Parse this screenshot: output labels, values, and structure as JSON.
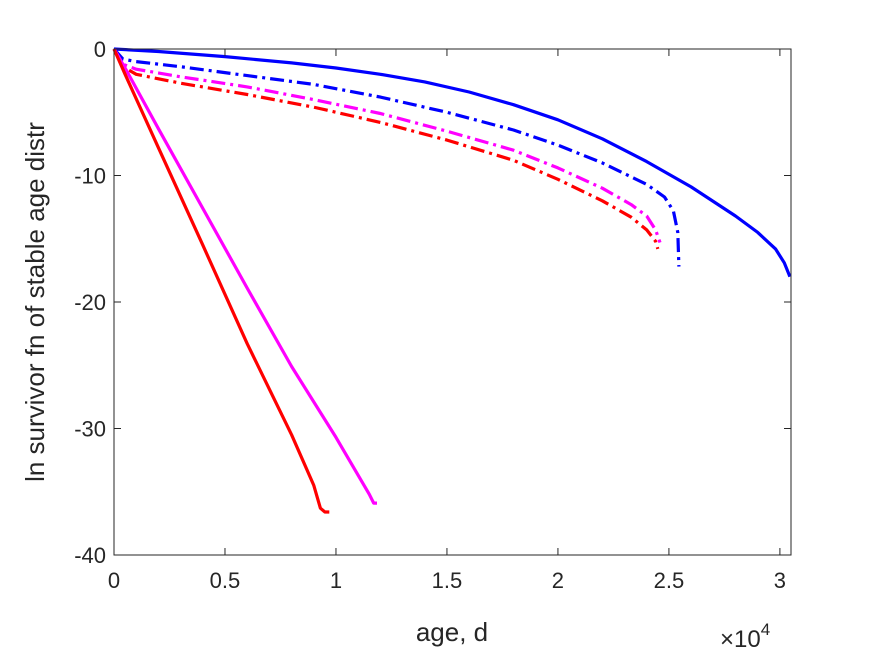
{
  "chart_data": {
    "type": "line",
    "xlabel": "age, d",
    "ylabel": "ln survivor fn of stable age distr",
    "x_multiplier": {
      "base": "×10",
      "exponent": "4"
    },
    "xlim": [
      0,
      30500
    ],
    "ylim": [
      -40,
      0
    ],
    "x_ticks": [
      0,
      5000,
      10000,
      15000,
      20000,
      25000,
      30000
    ],
    "x_tick_labels": [
      "0",
      "0.5",
      "1",
      "1.5",
      "2",
      "2.5",
      "3"
    ],
    "y_ticks": [
      0,
      -10,
      -20,
      -30,
      -40
    ],
    "y_tick_labels": [
      "0",
      "-10",
      "-20",
      "-30",
      "-40"
    ],
    "grid": false,
    "series": [
      {
        "color": "#0000ff",
        "style": "solid",
        "points": [
          [
            0,
            0
          ],
          [
            2000,
            -0.2
          ],
          [
            5000,
            -0.6
          ],
          [
            8000,
            -1.1
          ],
          [
            10000,
            -1.5
          ],
          [
            12000,
            -2.0
          ],
          [
            14000,
            -2.6
          ],
          [
            16000,
            -3.4
          ],
          [
            18000,
            -4.4
          ],
          [
            20000,
            -5.6
          ],
          [
            22000,
            -7.1
          ],
          [
            24000,
            -8.9
          ],
          [
            26000,
            -10.9
          ],
          [
            28000,
            -13.2
          ],
          [
            29000,
            -14.5
          ],
          [
            29800,
            -15.8
          ],
          [
            30200,
            -16.9
          ],
          [
            30450,
            -18.0
          ]
        ]
      },
      {
        "color": "#0000ff",
        "style": "dashdot",
        "points": [
          [
            0,
            0
          ],
          [
            400,
            -0.8
          ],
          [
            1000,
            -1.0
          ],
          [
            3000,
            -1.4
          ],
          [
            6000,
            -2.1
          ],
          [
            9000,
            -2.8
          ],
          [
            12000,
            -3.8
          ],
          [
            15000,
            -5.0
          ],
          [
            18000,
            -6.4
          ],
          [
            20000,
            -7.6
          ],
          [
            22000,
            -9.0
          ],
          [
            24000,
            -10.7
          ],
          [
            24800,
            -11.7
          ],
          [
            25200,
            -12.8
          ],
          [
            25400,
            -14.5
          ],
          [
            25450,
            -17.2
          ]
        ]
      },
      {
        "color": "#ff00ff",
        "style": "dashdot",
        "points": [
          [
            0,
            0
          ],
          [
            400,
            -1.2
          ],
          [
            1000,
            -1.6
          ],
          [
            3000,
            -2.2
          ],
          [
            6000,
            -3.0
          ],
          [
            9000,
            -4.0
          ],
          [
            12000,
            -5.1
          ],
          [
            15000,
            -6.5
          ],
          [
            18000,
            -8.0
          ],
          [
            20000,
            -9.4
          ],
          [
            22000,
            -11.0
          ],
          [
            23300,
            -12.3
          ],
          [
            24000,
            -13.2
          ],
          [
            24400,
            -14.3
          ],
          [
            24600,
            -15.3
          ]
        ]
      },
      {
        "color": "#ff0000",
        "style": "dashdot",
        "points": [
          [
            0,
            0
          ],
          [
            400,
            -1.4
          ],
          [
            1000,
            -2.0
          ],
          [
            3000,
            -2.7
          ],
          [
            6000,
            -3.6
          ],
          [
            9000,
            -4.6
          ],
          [
            12000,
            -5.8
          ],
          [
            15000,
            -7.2
          ],
          [
            18000,
            -8.8
          ],
          [
            20000,
            -10.3
          ],
          [
            22000,
            -12.0
          ],
          [
            23300,
            -13.3
          ],
          [
            24000,
            -14.3
          ],
          [
            24400,
            -15.2
          ],
          [
            24500,
            -15.8
          ]
        ]
      },
      {
        "color": "#ff00ff",
        "style": "solid",
        "points": [
          [
            0,
            0
          ],
          [
            500,
            -1.5
          ],
          [
            2000,
            -6.3
          ],
          [
            4000,
            -12.6
          ],
          [
            6000,
            -18.9
          ],
          [
            8000,
            -25.1
          ],
          [
            10000,
            -30.7
          ],
          [
            11500,
            -35.2
          ],
          [
            11700,
            -35.9
          ],
          [
            11850,
            -35.9
          ]
        ]
      },
      {
        "color": "#ff0000",
        "style": "solid",
        "points": [
          [
            0,
            0
          ],
          [
            500,
            -2.0
          ],
          [
            2000,
            -7.8
          ],
          [
            4000,
            -15.5
          ],
          [
            6000,
            -23.3
          ],
          [
            8000,
            -30.5
          ],
          [
            9000,
            -34.5
          ],
          [
            9300,
            -36.3
          ],
          [
            9500,
            -36.6
          ],
          [
            9700,
            -36.6
          ]
        ]
      }
    ]
  }
}
